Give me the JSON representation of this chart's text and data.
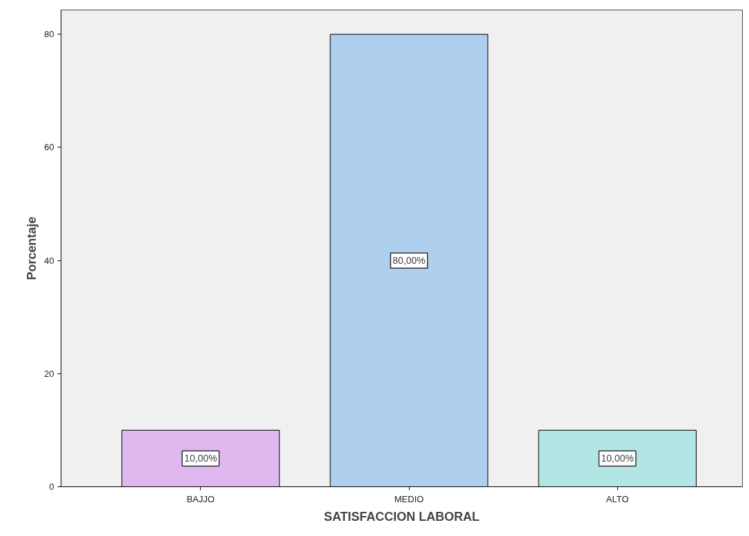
{
  "chart_data": {
    "type": "bar",
    "xlabel": "SATISFACCION LABORAL",
    "ylabel": "Porcentaje",
    "categories": [
      "BAJJO",
      "MEDIO",
      "ALTO"
    ],
    "values": [
      10,
      80,
      10
    ],
    "colors": [
      "#dfb8f0",
      "#aecfee",
      "#b3e5e5"
    ],
    "value_labels": [
      "10,00%",
      "80,00%",
      "10,00%"
    ],
    "ylim": [
      0,
      84.3
    ],
    "yticks": [
      0,
      20,
      40,
      60,
      80
    ],
    "grid": false
  }
}
